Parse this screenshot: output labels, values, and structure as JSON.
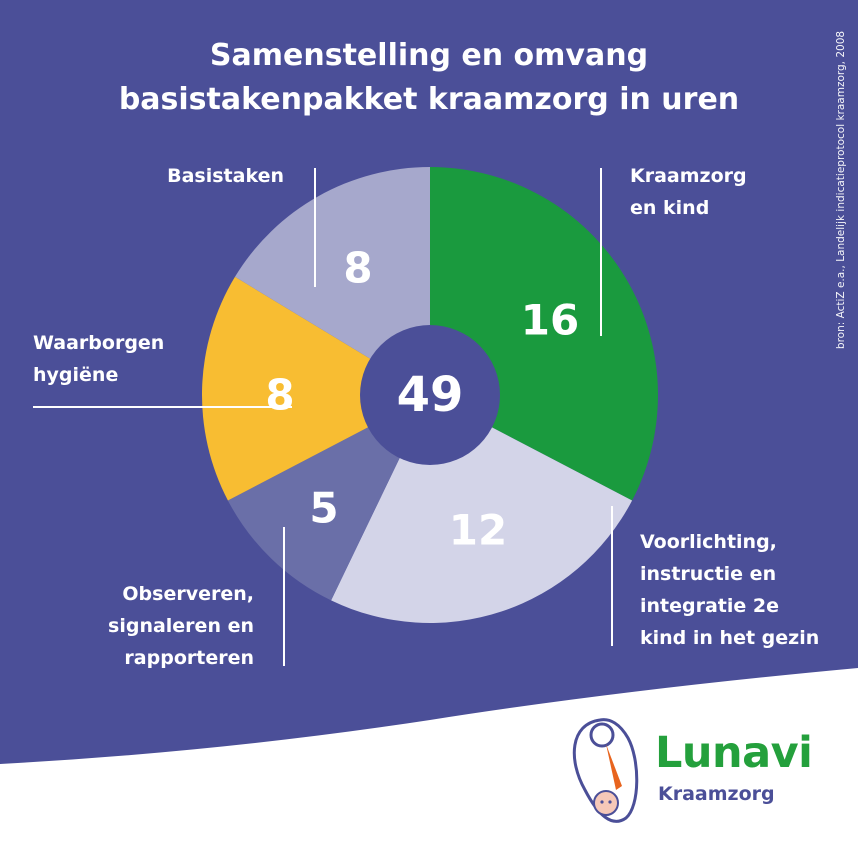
{
  "title_line1": "Samenstelling en omvang",
  "title_line2": "basistakenpakket kraamzorg in uren",
  "source": "bron: ActiZ e.a., Landelijk indicatieprotocol kraamzorg, 2008",
  "colors": {
    "background": "#4b4f98",
    "center": "#4b4f98",
    "green": "#1a9a3e",
    "light": "#d3d4e8",
    "slate": "#6a6fa8",
    "yellow": "#f8bd32",
    "gray": "#a6a8cc",
    "logo_green": "#24a03c",
    "logo_purple": "#4b4f98",
    "logo_orange": "#e8641e"
  },
  "chart_data": {
    "type": "pie",
    "title": "Samenstelling en omvang basistakenpakket kraamzorg in uren",
    "total": "49",
    "start_angle": 0,
    "slices": [
      {
        "lines": [
          "Kraamzorg",
          "en kind"
        ],
        "value": 16,
        "color": "#1a9a3e"
      },
      {
        "lines": [
          "Voorlichting,",
          "instructie en",
          "integratie 2e",
          "kind in het gezin"
        ],
        "value": 12,
        "color": "#d3d4e8"
      },
      {
        "lines": [
          "Observeren,",
          "signaleren en",
          "rapporteren"
        ],
        "value": 5,
        "color": "#6a6fa8"
      },
      {
        "lines": [
          "Waarborgen",
          "hygiëne"
        ],
        "value": 8,
        "color": "#f8bd32"
      },
      {
        "lines": [
          "Basistaken"
        ],
        "value": 8,
        "color": "#a6a8cc"
      }
    ]
  },
  "logo": {
    "name": "Lunavi",
    "subtitle": "Kraamzorg"
  }
}
